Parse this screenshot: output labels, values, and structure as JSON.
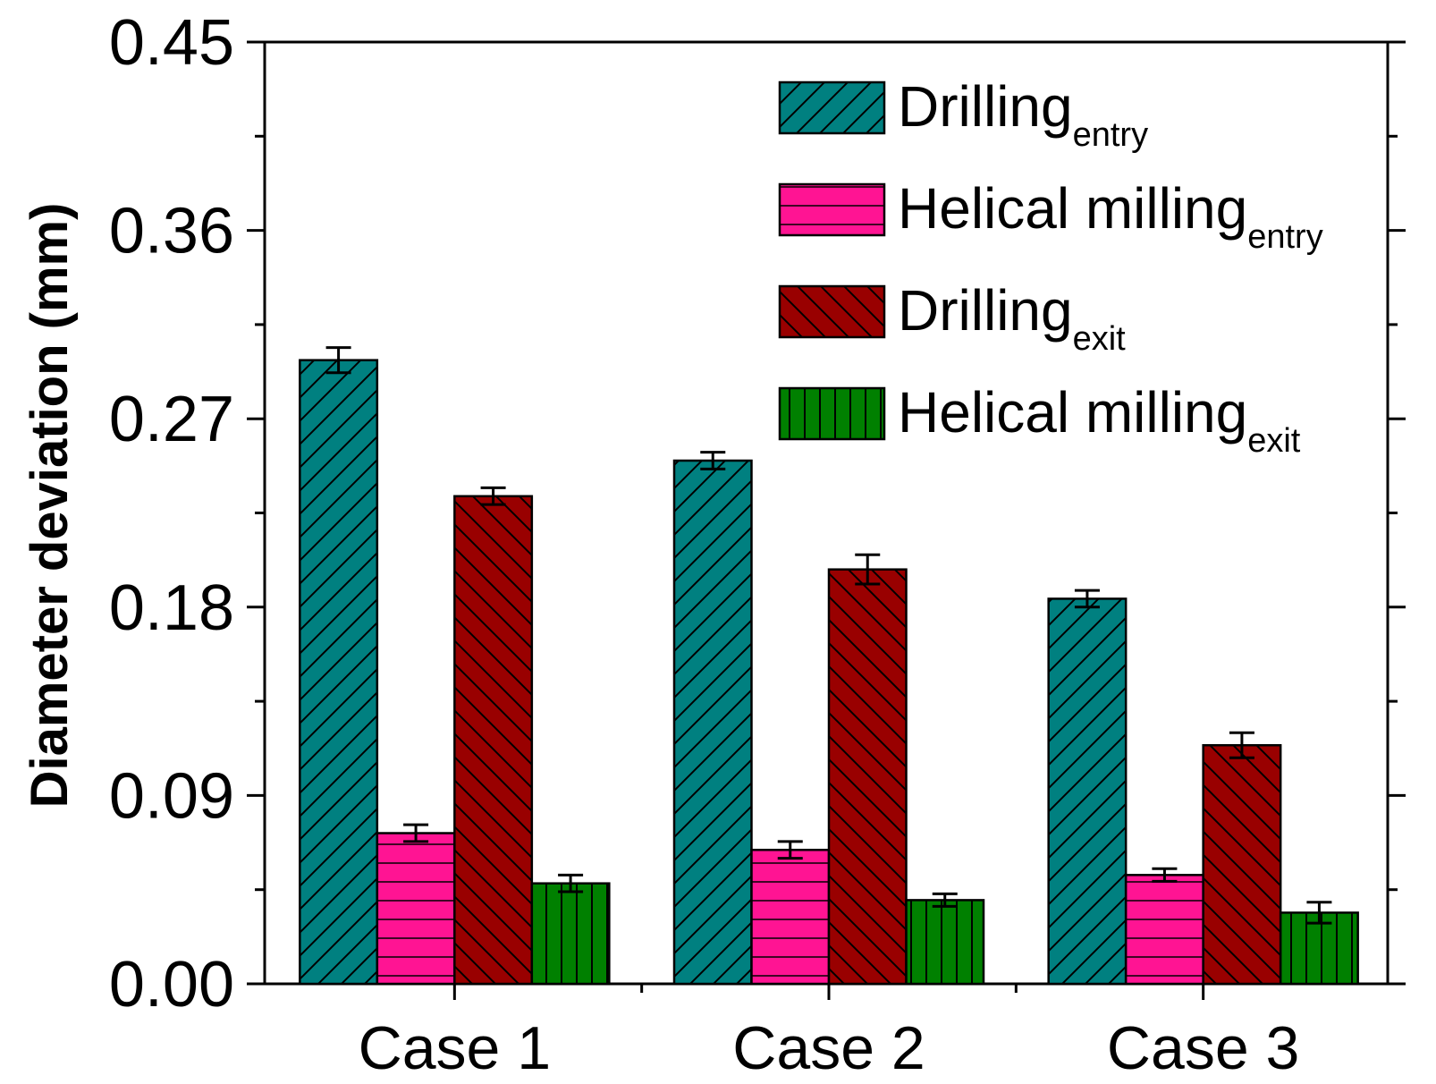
{
  "chart_data": {
    "type": "bar",
    "title": "",
    "xlabel": "",
    "ylabel": "Diameter deviation (mm)",
    "ylim": [
      0,
      0.45
    ],
    "yticks": [
      "0.00",
      "0.09",
      "0.18",
      "0.27",
      "0.36",
      "0.45"
    ],
    "categories": [
      "Case 1",
      "Case 2",
      "Case 3"
    ],
    "legend_position": "top-right",
    "series": [
      {
        "name": "Drilling",
        "subscript": "entry",
        "color": "#008080",
        "pattern": "diag-up",
        "values": [
          0.298,
          0.25,
          0.184
        ],
        "errors": [
          0.006,
          0.004,
          0.004
        ]
      },
      {
        "name": "Helical milling",
        "subscript": "entry",
        "color": "#ff1493",
        "pattern": "horizontal",
        "values": [
          0.072,
          0.064,
          0.052
        ],
        "errors": [
          0.004,
          0.004,
          0.003
        ]
      },
      {
        "name": "Drilling",
        "subscript": "exit",
        "color": "#990000",
        "pattern": "diag-down",
        "values": [
          0.233,
          0.198,
          0.114
        ],
        "errors": [
          0.004,
          0.007,
          0.006
        ]
      },
      {
        "name": "Helical milling",
        "subscript": "exit",
        "color": "#008000",
        "pattern": "vertical",
        "values": [
          0.048,
          0.04,
          0.034
        ],
        "errors": [
          0.004,
          0.003,
          0.005
        ]
      }
    ]
  }
}
